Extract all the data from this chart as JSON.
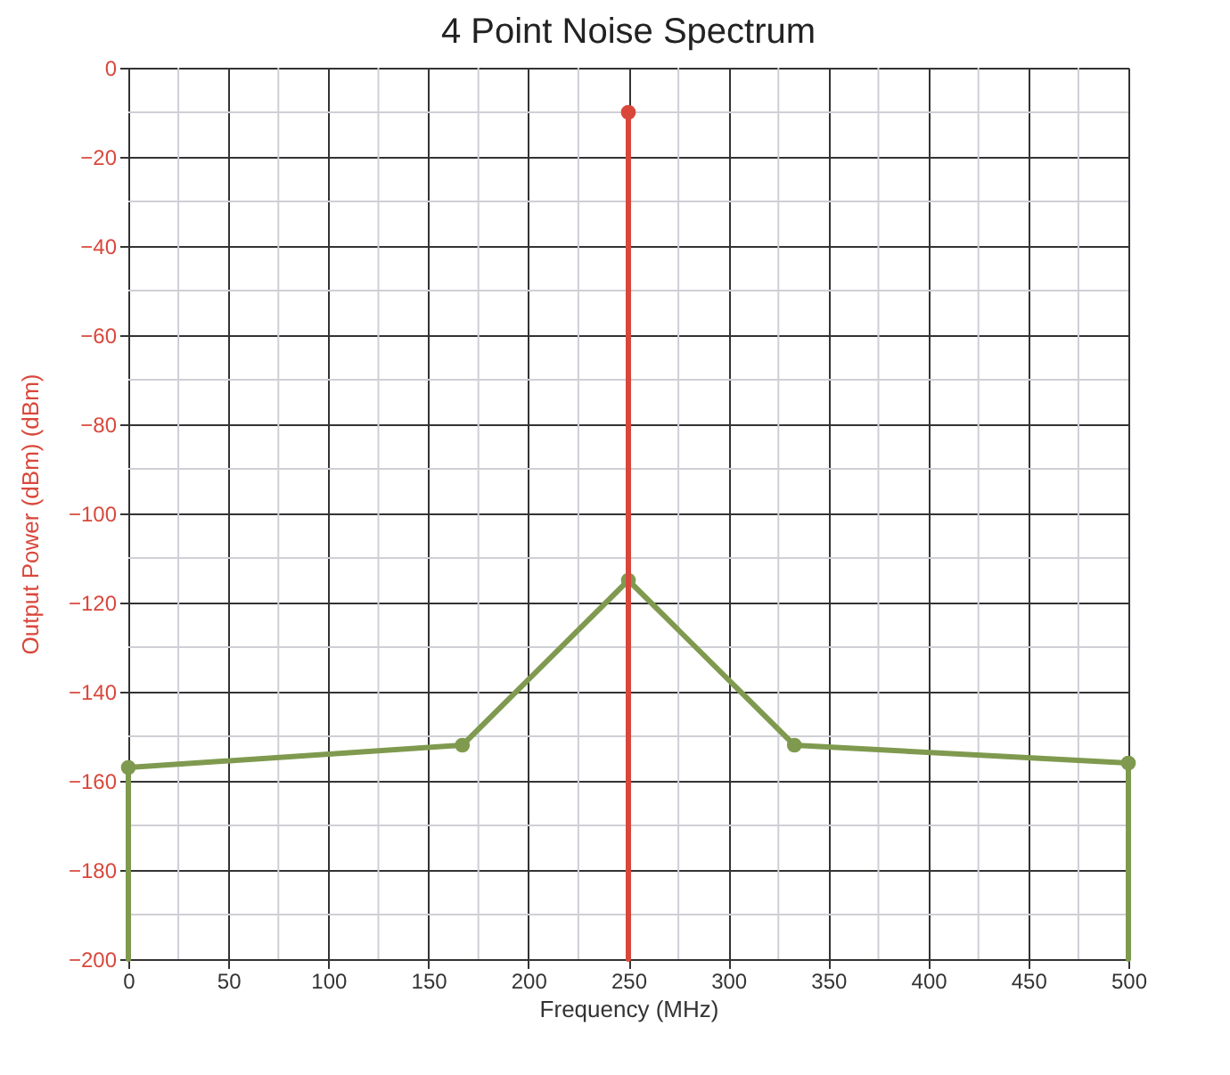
{
  "chart_data": {
    "type": "line",
    "title": "4 Point Noise Spectrum",
    "xlabel": "Frequency (MHz)",
    "ylabel": "Output Power (dBm) (dBm)",
    "xlim": [
      0,
      500
    ],
    "xticks": [
      0,
      50,
      100,
      150,
      200,
      250,
      300,
      350,
      400,
      450,
      500
    ],
    "ylim": [
      -200,
      0
    ],
    "yticks": [
      0,
      -20,
      -40,
      -60,
      -80,
      -100,
      -120,
      -140,
      -160,
      -180,
      -200
    ],
    "grid": true,
    "series": [
      {
        "color": "#7f9a4f",
        "x": [
          0,
          0
        ],
        "values": [
          -200,
          -157
        ]
      },
      {
        "color": "#7f9a4f",
        "x": [
          500,
          500
        ],
        "values": [
          -156,
          -200
        ]
      },
      {
        "marker": "circle",
        "color": "#7f9a4f",
        "x": [
          0,
          167,
          250,
          333,
          500
        ],
        "values": [
          -157,
          -152,
          -115,
          -152,
          -156
        ]
      },
      {
        "color": "#d9473b",
        "x": [
          250,
          250
        ],
        "values": [
          -200,
          -10
        ]
      },
      {
        "type": "scatter",
        "marker": "circle",
        "color": "#d9473b",
        "x": [
          250
        ],
        "values": [
          -10
        ]
      }
    ]
  }
}
